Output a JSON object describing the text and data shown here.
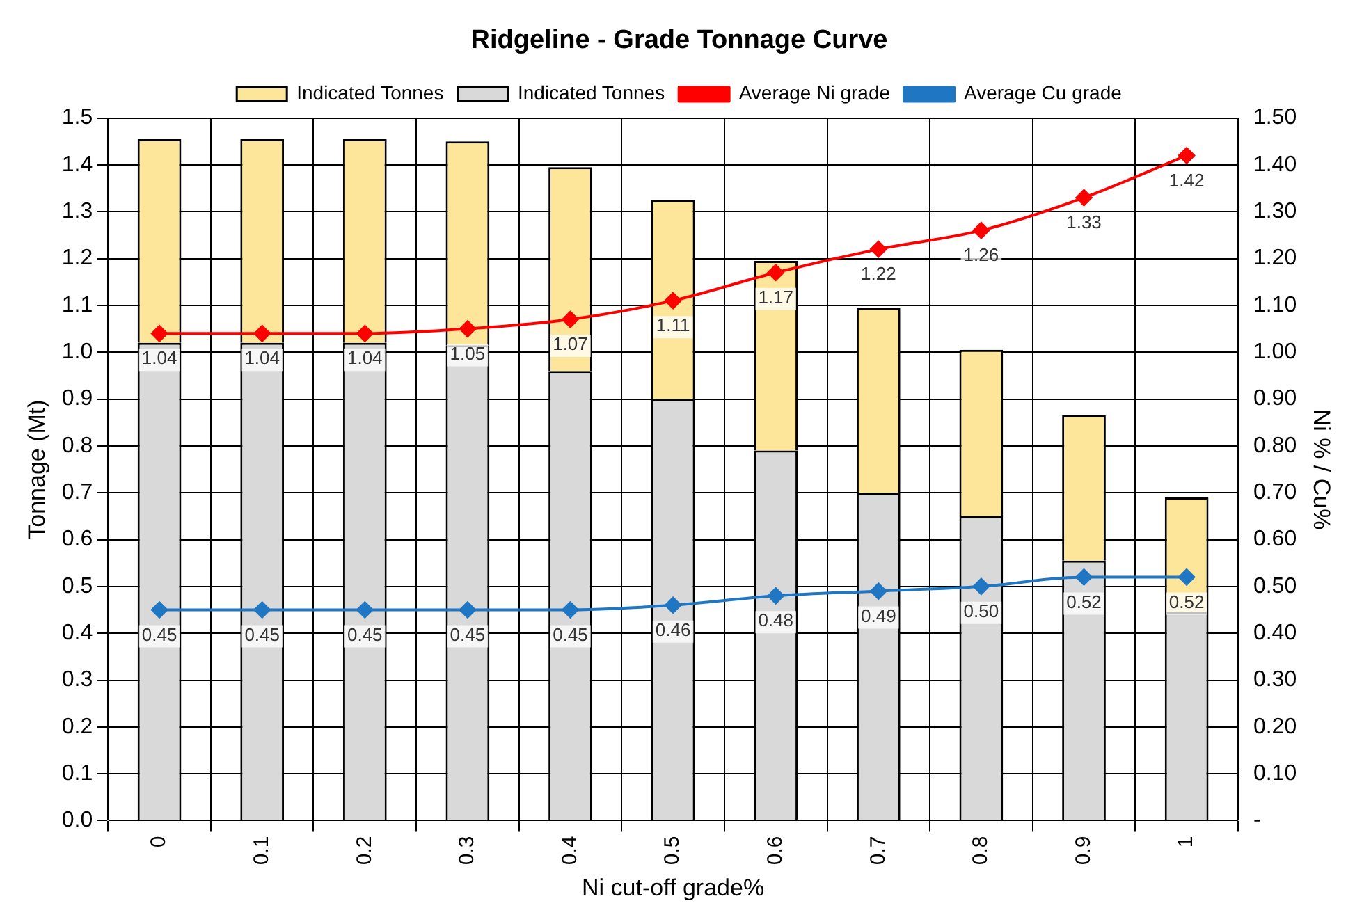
{
  "chart_data": {
    "type": "bar",
    "title": "Ridgeline - Grade Tonnage Curve",
    "xlabel": "Ni cut-off grade%",
    "ylabel": "Tonnage (Mt)",
    "y2label": "Ni % / Cu%",
    "categories": [
      "0",
      "0.1",
      "0.2",
      "0.3",
      "0.4",
      "0.5",
      "0.6",
      "0.7",
      "0.8",
      "0.9",
      "1"
    ],
    "stacked": true,
    "grid": true,
    "legend": "top",
    "marker": "diamond",
    "line_style": "solid",
    "ylim": [
      0,
      1.5
    ],
    "yticks": [
      {
        "value": 0,
        "label": "0.0"
      },
      0.1,
      0.2,
      0.3,
      0.4,
      0.5,
      0.6,
      0.7,
      0.8,
      0.9,
      {
        "value": 1,
        "label": "1.0"
      },
      1.1,
      1.2,
      1.3,
      1.4,
      1.5
    ],
    "y2lim": [
      0,
      1.5
    ],
    "y2ticks": [
      {
        "value": 0,
        "label": "-"
      },
      {
        "value": 0.1,
        "label": "0.10"
      },
      {
        "value": 0.2,
        "label": "0.20"
      },
      {
        "value": 0.3,
        "label": "0.30"
      },
      {
        "value": 0.4,
        "label": "0.40"
      },
      {
        "value": 0.5,
        "label": "0.50"
      },
      {
        "value": 0.6,
        "label": "0.60"
      },
      {
        "value": 0.7,
        "label": "0.70"
      },
      {
        "value": 0.8,
        "label": "0.80"
      },
      {
        "value": 0.9,
        "label": "0.90"
      },
      {
        "value": 1,
        "label": "1.00"
      },
      {
        "value": 1.1,
        "label": "1.10"
      },
      {
        "value": 1.2,
        "label": "1.20"
      },
      {
        "value": 1.3,
        "label": "1.30"
      },
      {
        "value": 1.4,
        "label": "1.40"
      },
      {
        "value": 1.5,
        "label": "1.50"
      }
    ],
    "series": [
      {
        "name": "Indicated Tonnes",
        "color": "#d9d9d9",
        "values": [
          1.02,
          1.02,
          1.02,
          1.015,
          0.96,
          0.9,
          0.79,
          0.7,
          0.65,
          0.555,
          0.445
        ]
      },
      {
        "name": "Indicated Tonnes",
        "color": "#fde699",
        "values": [
          0.435,
          0.435,
          0.435,
          0.435,
          0.435,
          0.425,
          0.405,
          0.395,
          0.355,
          0.31,
          0.245
        ]
      },
      {
        "name": "Average Ni grade",
        "type": "line",
        "axis": "y2",
        "color": "#ff0000",
        "values": [
          1.04,
          1.04,
          1.04,
          1.05,
          1.07,
          1.11,
          1.17,
          1.22,
          1.26,
          1.33,
          1.42
        ],
        "value_labels": [
          "1.04",
          "1.04",
          "1.04",
          "1.05",
          "1.07",
          "1.11",
          "1.17",
          "1.22",
          "1.26",
          "1.33",
          "1.42"
        ]
      },
      {
        "name": "Average Cu grade",
        "type": "line",
        "axis": "y2",
        "color": "#1f77c4",
        "values": [
          0.45,
          0.45,
          0.45,
          0.45,
          0.45,
          0.46,
          0.48,
          0.49,
          0.5,
          0.52,
          0.52
        ],
        "value_labels": [
          "0.45",
          "0.45",
          "0.45",
          "0.45",
          "0.45",
          "0.46",
          "0.48",
          "0.49",
          "0.50",
          "0.52",
          "0.52"
        ]
      }
    ]
  }
}
